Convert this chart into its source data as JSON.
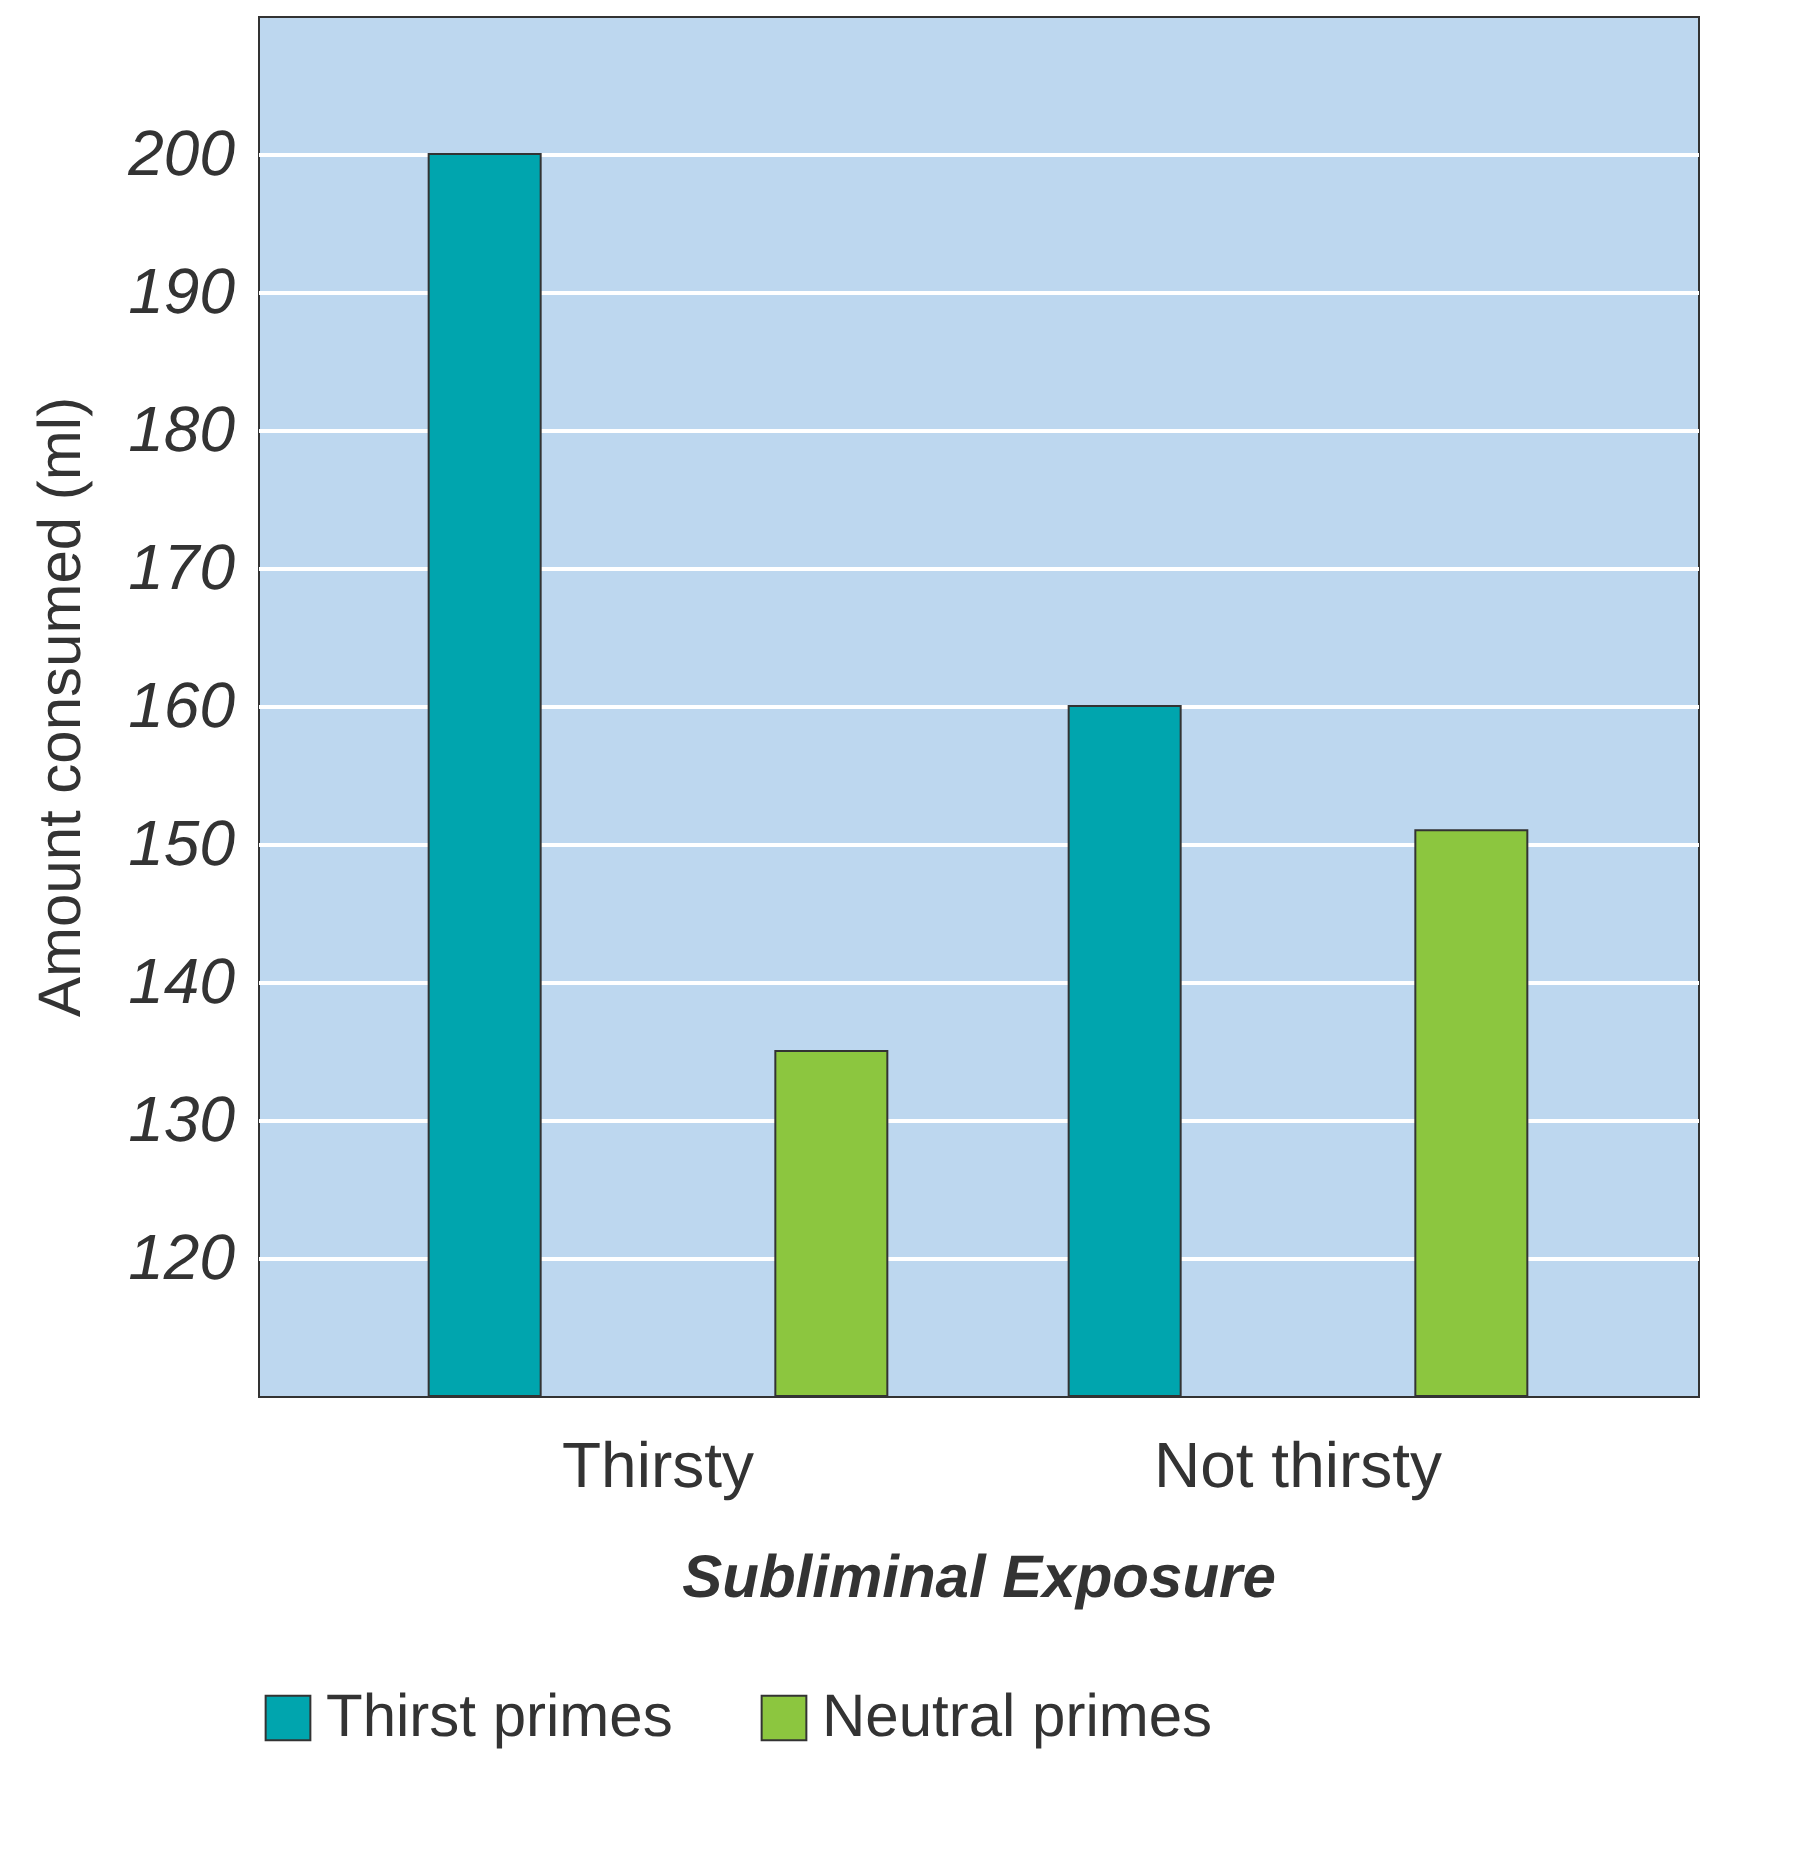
{
  "chart_data": {
    "type": "bar",
    "xlabel": "Subliminal Exposure",
    "ylabel": "Amount consumed (ml)",
    "categories": [
      "Thirsty",
      "Not thirsty"
    ],
    "series": [
      {
        "name": "Thirst primes",
        "color": "#00a5ae",
        "values": [
          200,
          160
        ]
      },
      {
        "name": "Neutral primes",
        "color": "#8cc63f",
        "values": [
          135,
          151
        ]
      }
    ],
    "ylim": [
      110,
      210
    ],
    "yticks": [
      120,
      130,
      140,
      150,
      160,
      170,
      180,
      190,
      200
    ],
    "grid": "y",
    "legend": "bottom"
  }
}
